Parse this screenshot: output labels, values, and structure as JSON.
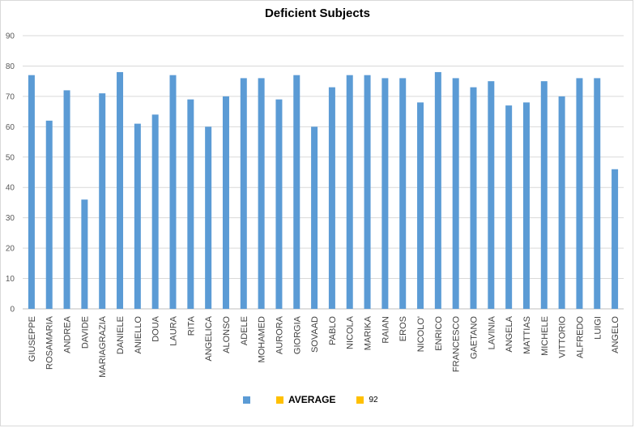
{
  "chart_data": {
    "type": "bar",
    "title": "Deficient Subjects",
    "xlabel": "",
    "ylabel": "",
    "ylim": [
      0,
      90
    ],
    "yticks": [
      0,
      10,
      20,
      30,
      40,
      50,
      60,
      70,
      80,
      90
    ],
    "grid": true,
    "bar_color": "#5b9bd5",
    "categories": [
      "GIUSEPPE",
      "ROSAMARIA",
      "ANDREA",
      "DAVIDE",
      "MARIAGRAZIA",
      "DANIELE",
      "ANIELLO",
      "DOUA",
      "LAURA",
      "RITA",
      "ANGELICA",
      "ALONSO",
      "ADELE",
      "MOHAMED",
      "AURORA",
      "GIORGIA",
      "SOVAAD",
      "PABLO",
      "NICOLA",
      "MARIKA",
      "RAIAN",
      "EROS",
      "NICOLO'",
      "ENRICO",
      "FRANCESCO",
      "GAETANO",
      "LAVINIA",
      "ANGELA",
      "MATTIAS",
      "MICHELE",
      "VITTORIO",
      "ALFREDO",
      "LUIGI",
      "ANGELO"
    ],
    "series": [
      {
        "name": "",
        "color": "#5b9bd5",
        "values": [
          77,
          62,
          72,
          36,
          71,
          78,
          61,
          64,
          77,
          69,
          60,
          70,
          76,
          76,
          69,
          77,
          60,
          73,
          77,
          77,
          76,
          76,
          68,
          78,
          76,
          73,
          75,
          67,
          68,
          75,
          70,
          76,
          76,
          46
        ]
      }
    ],
    "legend": {
      "placement": "bottom",
      "entries": [
        {
          "label": "",
          "color": "#5b9bd5"
        },
        {
          "label": "AVERAGE",
          "color": "#ffc000"
        },
        {
          "label": "92",
          "color": "#ffc000"
        }
      ]
    }
  }
}
